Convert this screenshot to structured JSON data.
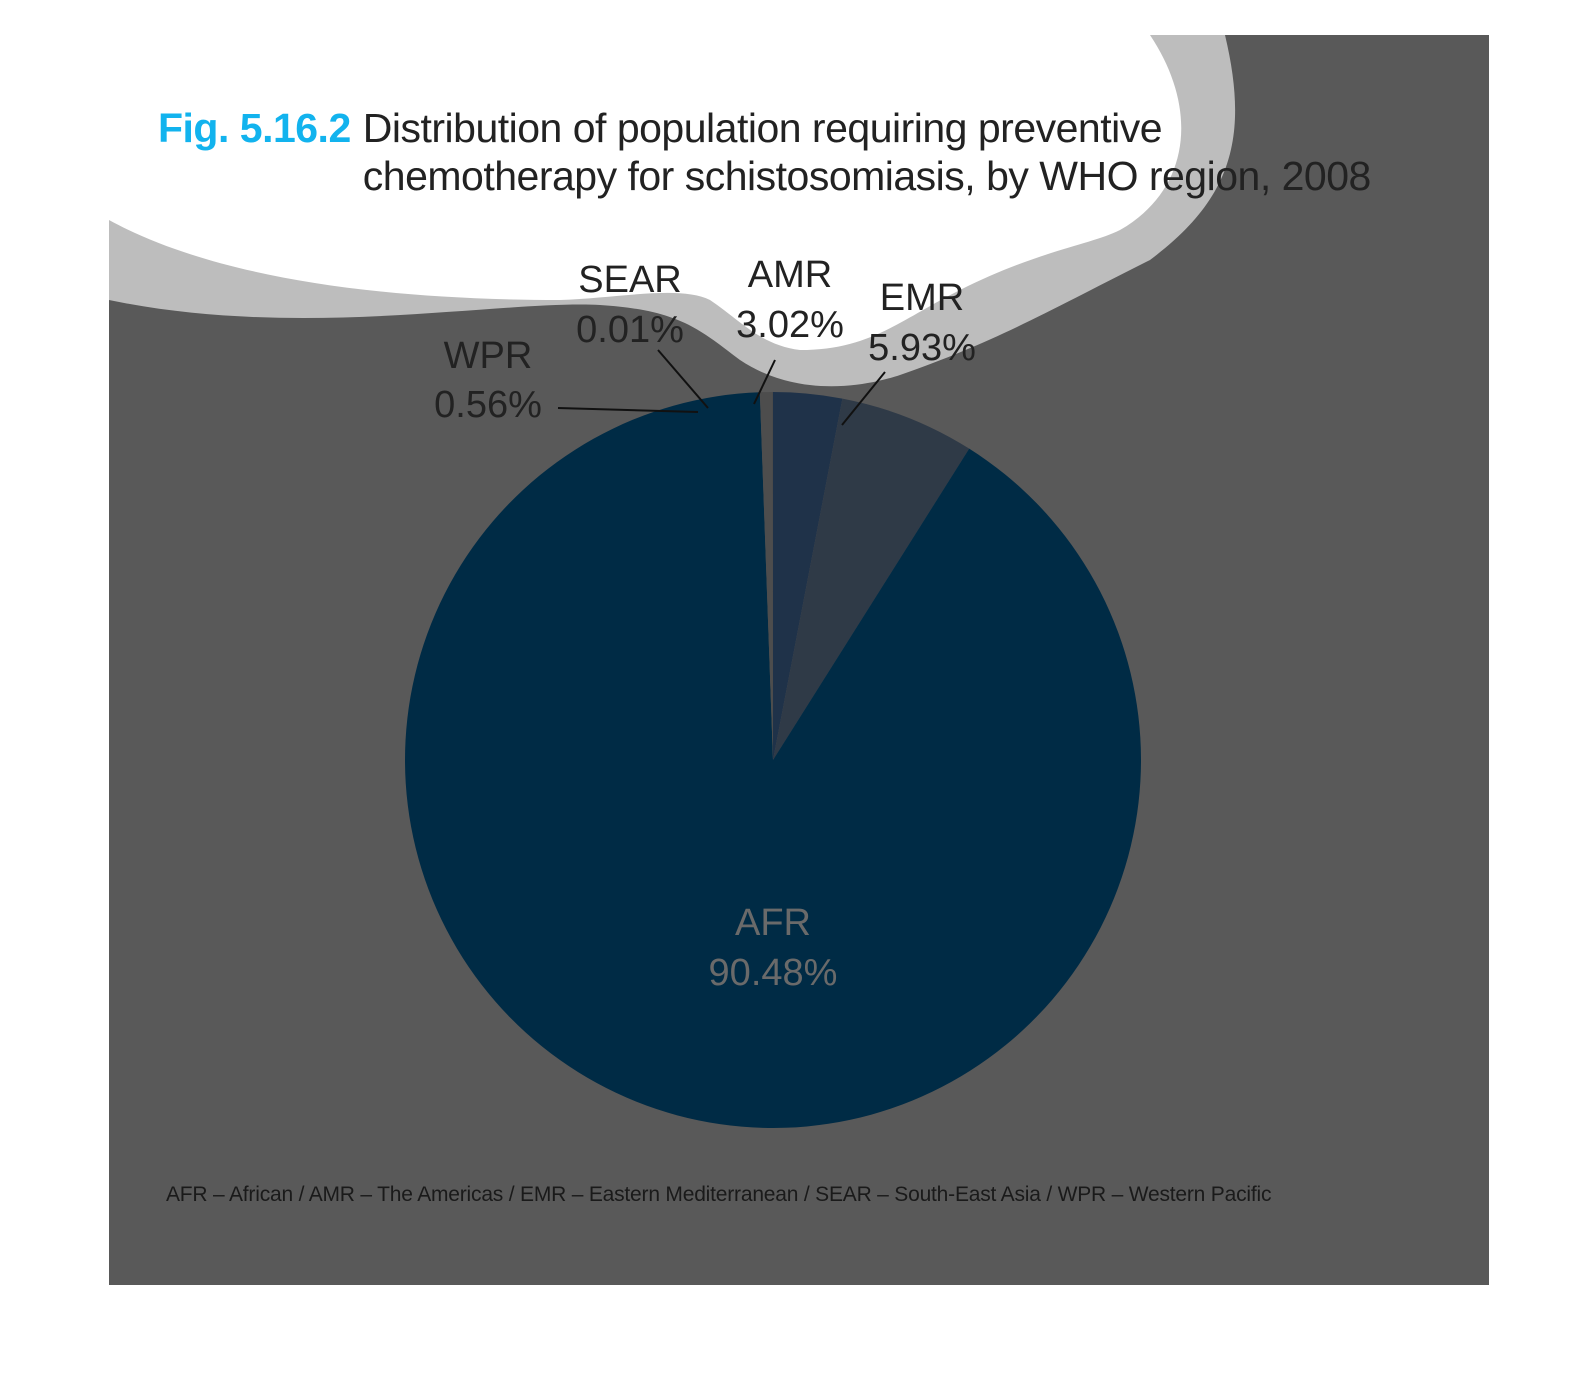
{
  "figure": {
    "number": "Fig. 5.16.2",
    "title": "Distribution of population requiring preventive chemotherapy for schistosomiasis, by WHO region, 2008",
    "footnote": "AFR – African / AMR – The Americas / EMR – Eastern Mediterranean / SEAR – South-East Asia / WPR – Western Pacific"
  },
  "colors": {
    "title_accent": "#12b3ee",
    "background_panel": "#595959",
    "wave_band": "#bdbdbd",
    "text": "#222222"
  },
  "chart_data": {
    "type": "pie",
    "title": "Distribution of population requiring preventive chemotherapy for schistosomiasis, by WHO region, 2008",
    "slices": [
      {
        "label": "AFR",
        "value": 90.48,
        "value_label": "90.48%",
        "color": "#002b45",
        "label_color": "#6a6a6a",
        "label_placement": "inside"
      },
      {
        "label": "WPR",
        "value": 0.56,
        "value_label": "0.56%",
        "color": "#4d4d4d",
        "label_color": "#222222",
        "label_placement": "outside-left"
      },
      {
        "label": "SEAR",
        "value": 0.01,
        "value_label": "0.01%",
        "color": "#3a3a3a",
        "label_color": "#222222",
        "label_placement": "outside-top"
      },
      {
        "label": "AMR",
        "value": 3.02,
        "value_label": "3.02%",
        "color": "#1f3249",
        "label_color": "#222222",
        "label_placement": "outside-top"
      },
      {
        "label": "EMR",
        "value": 5.93,
        "value_label": "5.93%",
        "color": "#2f3a47",
        "label_color": "#222222",
        "label_placement": "outside-top-right"
      }
    ],
    "start": "12 o'clock",
    "direction": "counter-clockwise from AMR boundary",
    "legend": "none"
  }
}
